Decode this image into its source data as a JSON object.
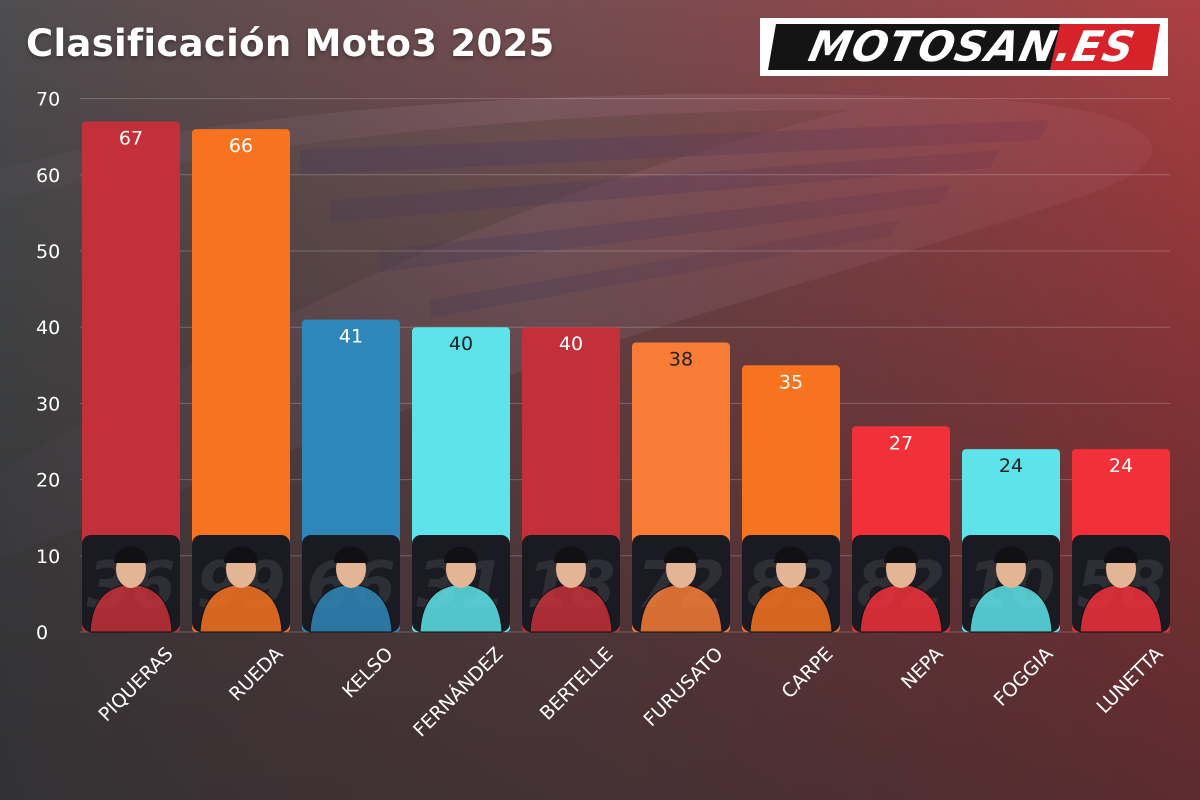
{
  "brand": {
    "logo_text": "MOTOSAN.ES"
  },
  "chart_data": {
    "type": "bar",
    "title": "Clasificación Moto3 2025",
    "xlabel": "",
    "ylabel": "",
    "ylim": [
      0,
      70
    ],
    "yticks": [
      0,
      10,
      20,
      30,
      40,
      50,
      60,
      70
    ],
    "grid": true,
    "categories": [
      "PIQUERAS",
      "RUEDA",
      "KELSO",
      "FERNÁNDEZ",
      "BERTELLE",
      "FURUSATO",
      "CARPE",
      "NEPA",
      "FOGGIA",
      "LUNETTA"
    ],
    "values": [
      67,
      66,
      41,
      40,
      40,
      38,
      35,
      27,
      24,
      24
    ],
    "bar_colors": [
      "#c4303a",
      "#f7731f",
      "#2f86b9",
      "#5de3e9",
      "#c4303a",
      "#f87c36",
      "#f7731f",
      "#f2303a",
      "#5de3e9",
      "#f2303a"
    ],
    "label_colors": [
      "#ffffff",
      "#ffffff",
      "#ffffff",
      "#222222",
      "#ffffff",
      "#222222",
      "#ffffff",
      "#ffffff",
      "#222222",
      "#ffffff"
    ],
    "rider_numbers": [
      "36",
      "99",
      "66",
      "31",
      "18",
      "72",
      "83",
      "82",
      "10",
      "58"
    ]
  }
}
